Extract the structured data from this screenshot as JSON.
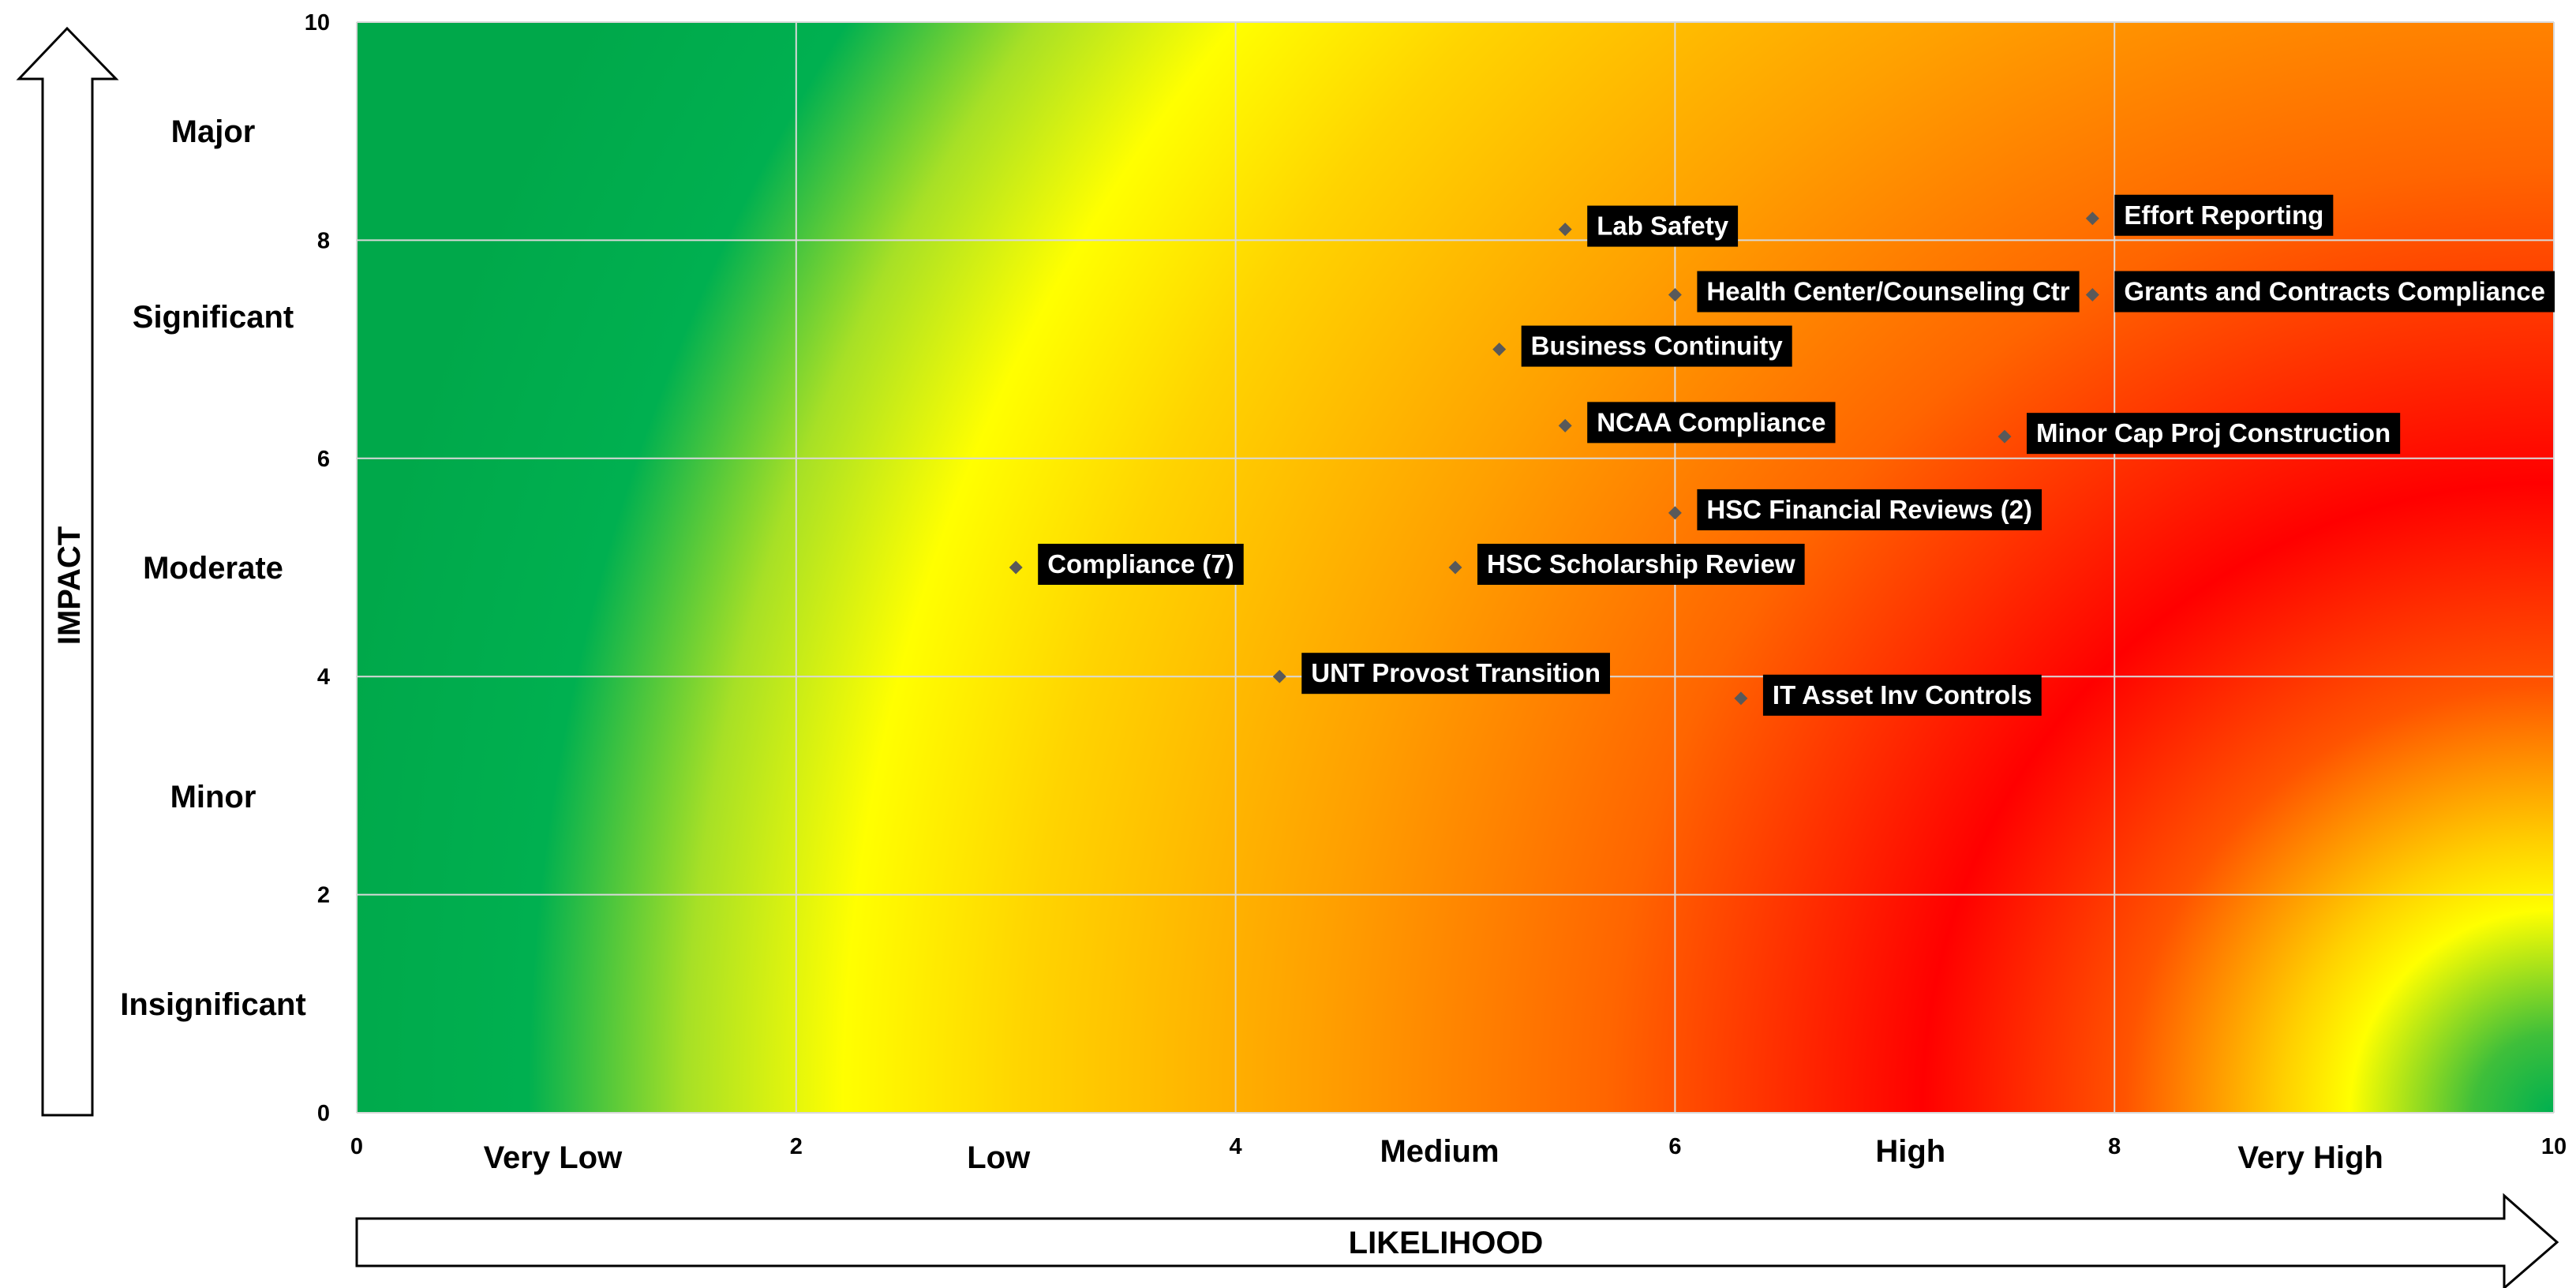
{
  "chart_data": {
    "type": "scatter",
    "title": "",
    "xlabel": "LIKELIHOOD",
    "ylabel": "IMPACT",
    "xlim": [
      0,
      10
    ],
    "ylim": [
      0,
      10
    ],
    "xticks": [
      0,
      2,
      4,
      6,
      8,
      10
    ],
    "yticks": [
      0,
      2,
      4,
      6,
      8,
      10
    ],
    "grid": true,
    "background": "heatmap gradient green (low) to yellow to orange to red (high)",
    "colors": {
      "green": "#00b050",
      "yellow": "#ffff00",
      "orange": "#ff9900",
      "red": "#ff0000",
      "marker": "#595959",
      "label_bg": "#000000",
      "label_text": "#ffffff"
    },
    "x_categories": [
      {
        "label": "Very Low",
        "value": 1
      },
      {
        "label": "Low",
        "value": 3
      },
      {
        "label": "Medium",
        "value": 5
      },
      {
        "label": "High",
        "value": 7
      },
      {
        "label": "Very High",
        "value": 9
      }
    ],
    "y_categories": [
      {
        "label": "Major",
        "value": 9
      },
      {
        "label": "Significant",
        "value": 7.3
      },
      {
        "label": "Moderate",
        "value": 5
      },
      {
        "label": "Minor",
        "value": 2.9
      },
      {
        "label": "Insignificant",
        "value": 1
      }
    ],
    "points": [
      {
        "label": "Lab Safety",
        "x": 5.5,
        "y": 8.1
      },
      {
        "label": "Effort Reporting",
        "x": 7.9,
        "y": 8.2
      },
      {
        "label": "Health Center/Counseling Ctr",
        "x": 6.0,
        "y": 7.5
      },
      {
        "label": "Grants and Contracts Compliance",
        "x": 7.9,
        "y": 7.5
      },
      {
        "label": "Business Continuity",
        "x": 5.2,
        "y": 7.0
      },
      {
        "label": "NCAA Compliance",
        "x": 5.5,
        "y": 6.3
      },
      {
        "label": "Minor Cap Proj Construction",
        "x": 7.5,
        "y": 6.2
      },
      {
        "label": "HSC Financial Reviews (2)",
        "x": 6.0,
        "y": 5.5
      },
      {
        "label": "Compliance (7)",
        "x": 3.0,
        "y": 5.0
      },
      {
        "label": "HSC Scholarship Review",
        "x": 5.0,
        "y": 5.0
      },
      {
        "label": "UNT Provost Transition",
        "x": 4.2,
        "y": 4.0
      },
      {
        "label": "IT Asset Inv Controls",
        "x": 6.3,
        "y": 3.8
      }
    ]
  }
}
